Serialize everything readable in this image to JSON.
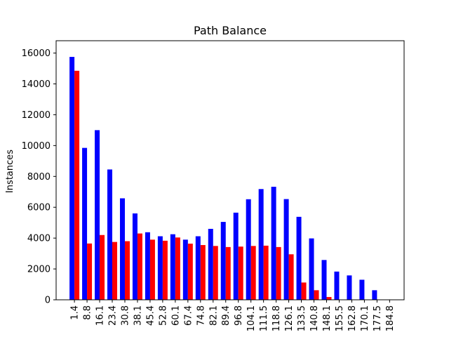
{
  "chart_data": {
    "type": "bar",
    "title": "Path Balance",
    "xlabel": "",
    "ylabel": "Instances",
    "categories": [
      "1.4",
      "8.8",
      "16.1",
      "23.4",
      "30.8",
      "38.1",
      "45.4",
      "52.8",
      "60.1",
      "67.4",
      "74.8",
      "82.1",
      "89.4",
      "96.8",
      "104.1",
      "111.5",
      "118.8",
      "126.1",
      "133.5",
      "140.8",
      "148.1",
      "155.5",
      "162.8",
      "170.1",
      "177.5",
      "184.8"
    ],
    "series": [
      {
        "color": "#0000ff",
        "values": [
          15750,
          9850,
          11000,
          8450,
          6580,
          5600,
          4380,
          4120,
          4250,
          3900,
          4120,
          4600,
          5050,
          5650,
          6520,
          7180,
          7330,
          6530,
          5380,
          3980,
          2580,
          1830,
          1580,
          1300,
          620,
          0
        ]
      },
      {
        "color": "#ff0000",
        "values": [
          14850,
          3650,
          4200,
          3750,
          3800,
          4300,
          3900,
          3830,
          4040,
          3640,
          3550,
          3490,
          3420,
          3450,
          3490,
          3510,
          3420,
          2950,
          1120,
          620,
          180,
          0,
          0,
          0,
          0,
          0
        ]
      }
    ],
    "ylim": [
      0,
      16800
    ],
    "yticks": [
      0,
      2000,
      4000,
      6000,
      8000,
      10000,
      12000,
      14000,
      16000
    ],
    "grid": false,
    "legend": "none"
  }
}
